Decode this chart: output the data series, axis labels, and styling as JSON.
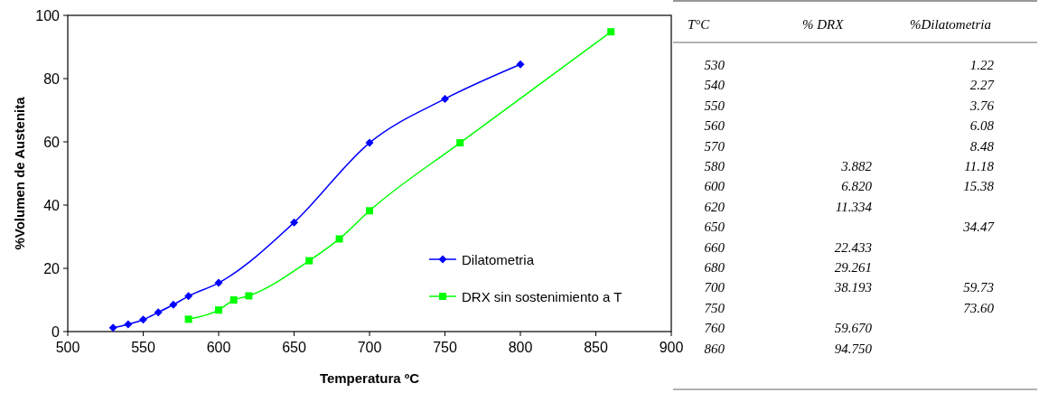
{
  "chart_data": [
    {
      "type": "line",
      "xlabel": "Temperatura ºC",
      "ylabel": "%Volumen de Austenita",
      "xlim": [
        500,
        900
      ],
      "xticks": [
        500,
        550,
        600,
        650,
        700,
        750,
        800,
        850,
        900
      ],
      "ylim": [
        0,
        100
      ],
      "yticks": [
        0,
        20,
        40,
        60,
        80,
        100
      ],
      "legend": "bottom right",
      "grid": false,
      "line_style": "solid",
      "series": [
        {
          "name": "Dilatometria",
          "color": "#0000ff",
          "marker": "diamond",
          "x": [
            530,
            540,
            550,
            560,
            570,
            580,
            600,
            650,
            700,
            750,
            800
          ],
          "values": [
            1.2,
            2.3,
            3.8,
            6.1,
            8.5,
            11.2,
            15.4,
            34.5,
            59.7,
            73.6,
            84.5
          ]
        },
        {
          "name": "DRX sin sostenimiento a T",
          "color": "#00ff00",
          "marker": "square",
          "x": [
            580,
            600,
            610,
            620,
            660,
            680,
            700,
            760,
            860
          ],
          "values": [
            3.9,
            6.8,
            10.0,
            11.3,
            22.4,
            29.3,
            38.2,
            59.7,
            94.8
          ]
        }
      ]
    },
    {
      "type": "other",
      "xlabel": "T°C",
      "categories": [
        "530",
        "540",
        "550",
        "560",
        "570",
        "580",
        "600",
        "620",
        "650",
        "660",
        "680",
        "700",
        "750",
        "760",
        "860"
      ],
      "series": [
        {
          "name": "% DRX",
          "values": [
            null,
            null,
            null,
            null,
            null,
            3.882,
            6.82,
            11.334,
            null,
            22.433,
            29.261,
            38.193,
            null,
            59.67,
            94.75
          ],
          "value_labels": [
            null,
            null,
            null,
            null,
            null,
            "3.882",
            "6.820",
            "11.334",
            null,
            "22.433",
            "29.261",
            "38.193",
            null,
            "59.670",
            "94.750"
          ]
        },
        {
          "name": "%Dilatometria",
          "values": [
            1.22,
            2.27,
            3.76,
            6.08,
            8.48,
            11.18,
            15.38,
            null,
            34.47,
            null,
            null,
            59.73,
            73.6,
            null,
            null
          ],
          "value_labels": [
            "1.22",
            "2.27",
            "3.76",
            "6.08",
            "8.48",
            "11.18",
            "15.38",
            null,
            "34.47",
            null,
            null,
            "59.73",
            "73.60",
            null,
            null
          ]
        }
      ]
    }
  ]
}
